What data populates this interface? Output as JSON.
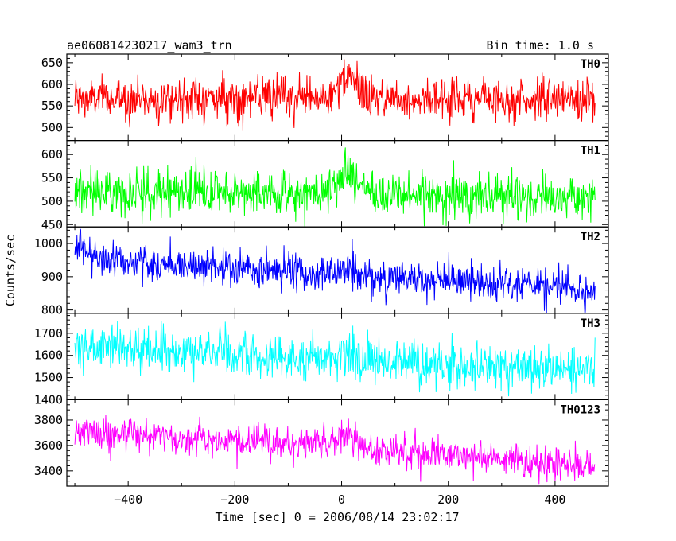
{
  "header": {
    "title": "ae060814230217_wam3_trn",
    "bin_time": "Bin time: 1.0 s"
  },
  "chart_data": {
    "type": "line",
    "xlabel": "Time [sec] 0 = 2006/08/14 23:02:17",
    "ylabel": "Counts/sec",
    "xlim": [
      -515,
      500
    ],
    "x_range_data": [
      -500,
      475
    ],
    "x_step": 1,
    "x_ticks": [
      -400,
      -200,
      0,
      200,
      400
    ],
    "x_tick_labels": [
      "−400",
      "−200",
      "0",
      "200",
      "400"
    ],
    "panels": [
      {
        "name": "TH0",
        "color": "#ff0000",
        "ylim": [
          470,
          670
        ],
        "y_ticks": [
          500,
          550,
          600,
          650
        ],
        "y_tick_labels": [
          "500",
          "550",
          "600",
          "650"
        ],
        "trend": [
          [
            -500,
            566
          ],
          [
            0,
            568
          ],
          [
            475,
            565
          ]
        ],
        "noise_sd": 24,
        "burst": {
          "center": 15,
          "width": 25,
          "amplitude": 45
        }
      },
      {
        "name": "TH1",
        "color": "#00ff00",
        "ylim": [
          445,
          630
        ],
        "y_ticks": [
          450,
          500,
          550,
          600
        ],
        "y_tick_labels": [
          "450",
          "500",
          "550",
          "600"
        ],
        "trend": [
          [
            -500,
            522
          ],
          [
            0,
            516
          ],
          [
            475,
            508
          ]
        ],
        "noise_sd": 24,
        "burst": {
          "center": 15,
          "width": 25,
          "amplitude": 45
        }
      },
      {
        "name": "TH2",
        "color": "#0000ff",
        "ylim": [
          790,
          1050
        ],
        "y_ticks": [
          800,
          900,
          1000
        ],
        "y_tick_labels": [
          "800",
          "900",
          "1000"
        ],
        "trend": [
          [
            -500,
            980
          ],
          [
            -400,
            945
          ],
          [
            0,
            905
          ],
          [
            475,
            858
          ]
        ],
        "noise_sd": 28,
        "burst": {
          "center": 15,
          "width": 25,
          "amplitude": 20
        }
      },
      {
        "name": "TH3",
        "color": "#00ffff",
        "ylim": [
          1400,
          1790
        ],
        "y_ticks": [
          1400,
          1500,
          1600,
          1700
        ],
        "y_tick_labels": [
          "1400",
          "1500",
          "1600",
          "1700"
        ],
        "trend": [
          [
            -500,
            1645
          ],
          [
            0,
            1575
          ],
          [
            475,
            1535
          ]
        ],
        "noise_sd": 50,
        "burst": {
          "center": 15,
          "width": 25,
          "amplitude": 40
        }
      },
      {
        "name": "TH0123",
        "color": "#ff00ff",
        "ylim": [
          3280,
          3960
        ],
        "y_ticks": [
          3400,
          3600,
          3800
        ],
        "y_tick_labels": [
          "3400",
          "3600",
          "3800"
        ],
        "trend": [
          [
            -500,
            3710
          ],
          [
            0,
            3590
          ],
          [
            475,
            3440
          ]
        ],
        "noise_sd": 65,
        "burst": {
          "center": 15,
          "width": 25,
          "amplitude": 90
        }
      }
    ]
  }
}
